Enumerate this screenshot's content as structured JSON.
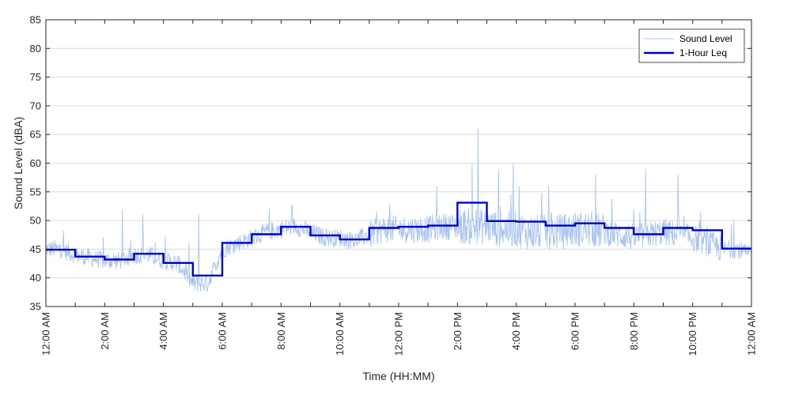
{
  "chart_data": {
    "type": "line",
    "title": "",
    "xlabel": "Time (HH:MM)",
    "ylabel": "Sound Level (dBA)",
    "ylim": [
      35,
      85
    ],
    "yticks": [
      35,
      40,
      45,
      50,
      55,
      60,
      65,
      70,
      75,
      80,
      85
    ],
    "xlim_hours": [
      0,
      24
    ],
    "xtick_hours": [
      0,
      2,
      4,
      6,
      8,
      10,
      12,
      14,
      16,
      18,
      20,
      22,
      24
    ],
    "xtick_labels": [
      "12:00 AM",
      "2:00 AM",
      "4:00 AM",
      "6:00 AM",
      "8:00 AM",
      "10:00 AM",
      "12:00 PM",
      "2:00 PM",
      "4:00 PM",
      "6:00 PM",
      "8:00 PM",
      "10:00 PM",
      "12:00 AM"
    ],
    "grid": "horizontal",
    "legend_position": "top-right",
    "series": [
      {
        "name": "Sound Level",
        "style": "thin line",
        "color": "#a8c4f0",
        "x_hours": [
          0,
          0.5,
          1,
          1.5,
          2,
          2.5,
          3,
          3.5,
          4,
          4.5,
          5,
          5.5,
          6,
          6.5,
          7,
          7.5,
          8,
          8.5,
          9,
          9.5,
          10,
          10.5,
          11,
          11.5,
          12,
          12.5,
          13,
          13.5,
          14,
          14.5,
          15,
          15.5,
          16,
          16.5,
          17,
          17.5,
          18,
          18.5,
          19,
          19.5,
          20,
          20.5,
          21,
          21.5,
          22,
          22.5,
          23,
          23.5,
          24
        ],
        "values": [
          45,
          45,
          44,
          43.5,
          43,
          43,
          44,
          44,
          43,
          42.5,
          39,
          39,
          45,
          46,
          47,
          48,
          48.5,
          49,
          48,
          47,
          47,
          46.5,
          47.5,
          48.5,
          48.5,
          48.5,
          48.5,
          49,
          49,
          49,
          49,
          48.5,
          48.5,
          48,
          48,
          48,
          48.5,
          48.5,
          48,
          47.5,
          47,
          47.5,
          48,
          47.5,
          47,
          46,
          45,
          45,
          44
        ],
        "peaks": [
          [
            2.6,
            52
          ],
          [
            3.3,
            51
          ],
          [
            5.2,
            51
          ],
          [
            7.6,
            52
          ],
          [
            11.7,
            53
          ],
          [
            13.3,
            56
          ],
          [
            14.5,
            60
          ],
          [
            14.7,
            66
          ],
          [
            15.4,
            59
          ],
          [
            15.9,
            60
          ],
          [
            16.1,
            56
          ],
          [
            17.1,
            56
          ],
          [
            18.7,
            58
          ],
          [
            20.4,
            59
          ],
          [
            21.5,
            58
          ],
          [
            23.4,
            50
          ]
        ]
      },
      {
        "name": "1-Hour Leq",
        "style": "thick step",
        "color": "#0000cc",
        "hour_starts": [
          0,
          1,
          2,
          3,
          4,
          5,
          6,
          7,
          8,
          9,
          10,
          11,
          12,
          13,
          14,
          15,
          16,
          17,
          18,
          19,
          20,
          21,
          22,
          23
        ],
        "values": [
          44.9,
          43.7,
          43.2,
          44.2,
          42.6,
          40.4,
          46.1,
          47.6,
          48.9,
          47.4,
          46.7,
          48.7,
          48.9,
          49.1,
          53.1,
          49.9,
          49.8,
          49.1,
          49.5,
          48.7,
          47.6,
          48.7,
          48.3,
          45.1
        ]
      }
    ]
  }
}
